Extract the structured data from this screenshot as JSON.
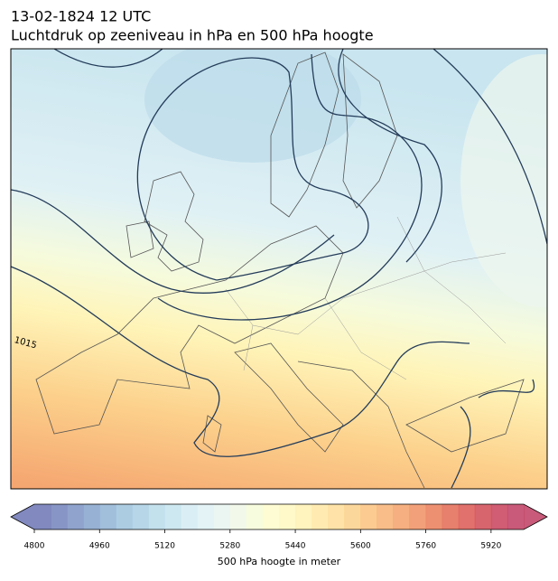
{
  "map": {
    "title": "13-02-1824 12 UTC",
    "subtitle": "Luchtdruk op zeeniveau in hPa en 500 hPa hoogte",
    "contour_label": "1015"
  },
  "colorbar": {
    "label": "500 hPa hoogte in meter",
    "lim": [
      4800,
      6000
    ],
    "ticks": [
      4800,
      4960,
      5120,
      5280,
      5440,
      5600,
      5760,
      5920
    ],
    "colors": [
      "#6b74b4",
      "#7283bc",
      "#7b93c4",
      "#85a3cc",
      "#90b3d5",
      "#9dc3dd",
      "#aacfe4",
      "#b8dbea",
      "#c6e4ef",
      "#d3ecf3",
      "#def1f4",
      "#e8f5f0",
      "#f0f8e6",
      "#f7fbd8",
      "#fdfccb",
      "#fff8c0",
      "#fff1b3",
      "#ffe8a5",
      "#fedd98",
      "#fcd08b",
      "#fac27f",
      "#f7b274",
      "#f4a16a",
      "#f08f61",
      "#ea7c59",
      "#e36a54",
      "#da5852",
      "#d04a55",
      "#c8415b",
      "#c03d62"
    ]
  }
}
